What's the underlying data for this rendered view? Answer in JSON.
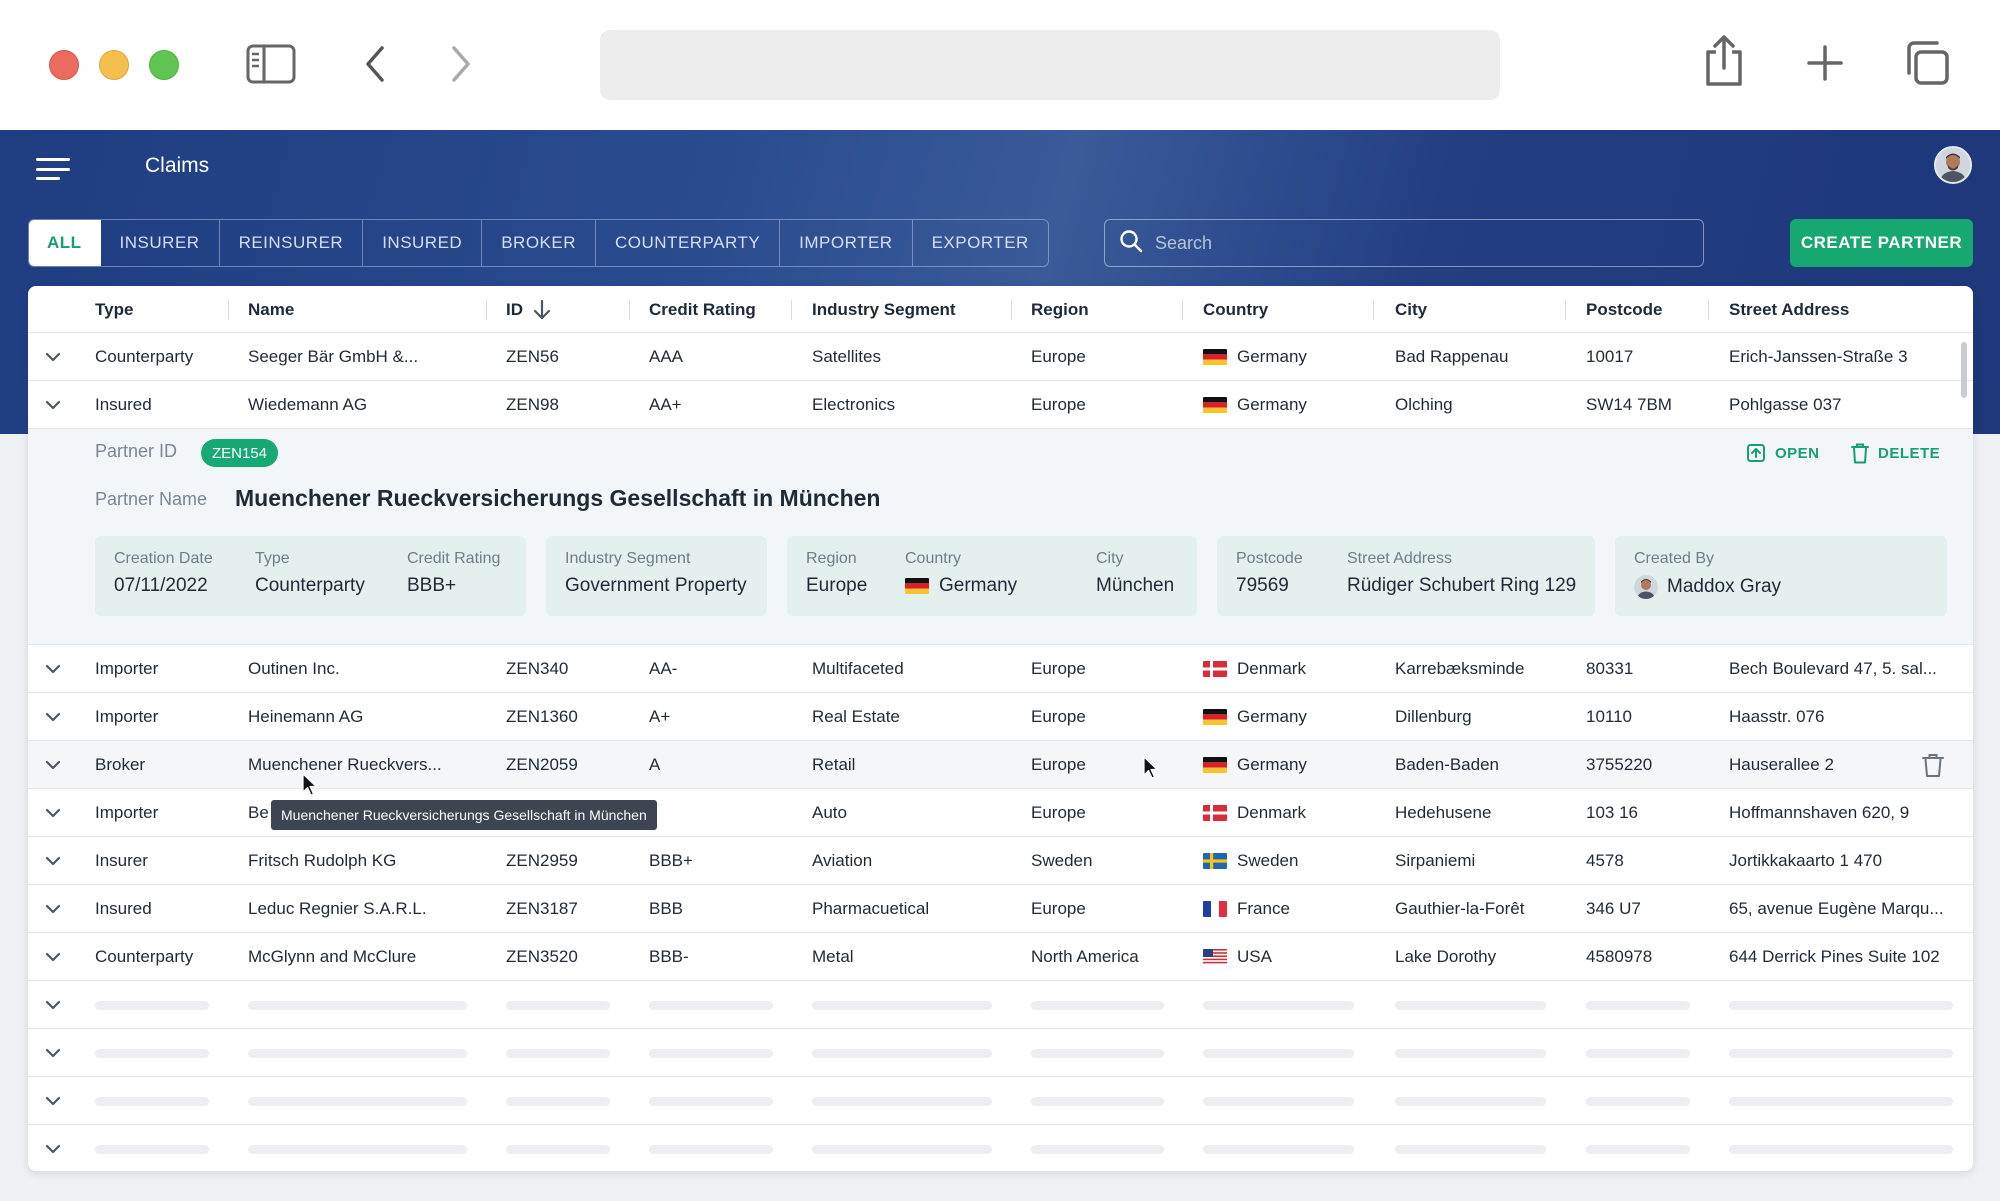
{
  "app": {
    "title": "Claims",
    "search_placeholder": "Search",
    "create_button": "CREATE PARTNER",
    "tabs": [
      "ALL",
      "INSURER",
      "REINSURER",
      "INSURED",
      "BROKER",
      "COUNTERPARTY",
      "IMPORTER",
      "EXPORTER"
    ],
    "active_tab": "ALL"
  },
  "table": {
    "columns": [
      "Type",
      "Name",
      "ID",
      "Credit Rating",
      "Industry Segment",
      "Region",
      "Country",
      "City",
      "Postcode",
      "Street Address"
    ],
    "sort": {
      "column": "ID",
      "direction": "descending"
    },
    "rows": [
      {
        "type": "Counterparty",
        "name": "Seeger Bär GmbH &...",
        "id": "ZEN56",
        "rating": "AAA",
        "segment": "Satellites",
        "region": "Europe",
        "country": "Germany",
        "flag": "de",
        "city": "Bad Rappenau",
        "postcode": "10017",
        "street": "Erich-Janssen-Straße 3"
      },
      {
        "type": "Insured",
        "name": "Wiedemann AG",
        "id": "ZEN98",
        "rating": "AA+",
        "segment": "Electronics",
        "region": "Europe",
        "country": "Germany",
        "flag": "de",
        "city": "Olching",
        "postcode": "SW14 7BM",
        "street": "Pohlgasse 037"
      },
      {
        "type": "Importer",
        "name": "Outinen Inc.",
        "id": "ZEN340",
        "rating": "AA-",
        "segment": "Multifaceted",
        "region": "Europe",
        "country": "Denmark",
        "flag": "dk",
        "city": "Karrebæksminde",
        "postcode": "80331",
        "street": "Bech Boulevard 47, 5. sal..."
      },
      {
        "type": "Importer",
        "name": "Heinemann AG",
        "id": "ZEN1360",
        "rating": "A+",
        "segment": "Real Estate",
        "region": "Europe",
        "country": "Germany",
        "flag": "de",
        "city": "Dillenburg",
        "postcode": "10110",
        "street": "Haasstr. 076"
      },
      {
        "type": "Broker",
        "name": "Muenchener Rueckvers...",
        "id": "ZEN2059",
        "rating": "A",
        "segment": "Retail",
        "region": "Europe",
        "country": "Germany",
        "flag": "de",
        "city": "Baden-Baden",
        "postcode": "3755220",
        "street": "Hauserallee 2"
      },
      {
        "type": "Importer",
        "name": "Be",
        "id": "",
        "rating": "",
        "segment": "Auto",
        "region": "Europe",
        "country": "Denmark",
        "flag": "dk",
        "city": "Hedehusene",
        "postcode": "103 16",
        "street": "Hoffmannshaven 620, 9"
      },
      {
        "type": "Insurer",
        "name": "Fritsch Rudolph KG",
        "id": "ZEN2959",
        "rating": "BBB+",
        "segment": "Aviation",
        "region": "Sweden",
        "country": "Sweden",
        "flag": "se",
        "city": "Sirpaniemi",
        "postcode": "4578",
        "street": "Jortikkakaarto 1 470"
      },
      {
        "type": "Insured",
        "name": "Leduc Regnier S.A.R.L.",
        "id": "ZEN3187",
        "rating": "BBB",
        "segment": "Pharmacuetical",
        "region": "Europe",
        "country": "France",
        "flag": "fr",
        "city": "Gauthier-la-Forêt",
        "postcode": "346 U7",
        "street": "65, avenue Eugène Marqu..."
      },
      {
        "type": "Counterparty",
        "name": "McGlynn and McClure",
        "id": "ZEN3520",
        "rating": "BBB-",
        "segment": "Metal",
        "region": "North America",
        "country": "USA",
        "flag": "us",
        "city": "Lake Dorothy",
        "postcode": "4580978",
        "street": "644 Derrick Pines Suite 102"
      }
    ]
  },
  "detail": {
    "partner_id_label": "Partner ID",
    "partner_id": "ZEN154",
    "partner_name_label": "Partner Name",
    "partner_name": "Muenchener Rueckversicherungs Gesellschaft in München",
    "open_label": "OPEN",
    "delete_label": "DELETE",
    "fields": {
      "creation_date_label": "Creation Date",
      "creation_date": "07/11/2022",
      "type_label": "Type",
      "type": "Counterparty",
      "credit_rating_label": "Credit Rating",
      "credit_rating": "BBB+",
      "industry_segment_label": "Industry Segment",
      "industry_segment": "Government Property",
      "region_label": "Region",
      "region": "Europe",
      "country_label": "Country",
      "country": "Germany",
      "city_label": "City",
      "city": "München",
      "postcode_label": "Postcode",
      "postcode": "79569",
      "street_label": "Street Address",
      "street": "Rüdiger Schubert Ring 129",
      "created_by_label": "Created By",
      "created_by": "Maddox Gray"
    }
  },
  "tooltip": "Muenchener Rueckversicherungs Gesellschaft in München",
  "colors": {
    "header": "#233f82",
    "accent": "#16a86f",
    "detail_box": "#e3f0ee"
  }
}
